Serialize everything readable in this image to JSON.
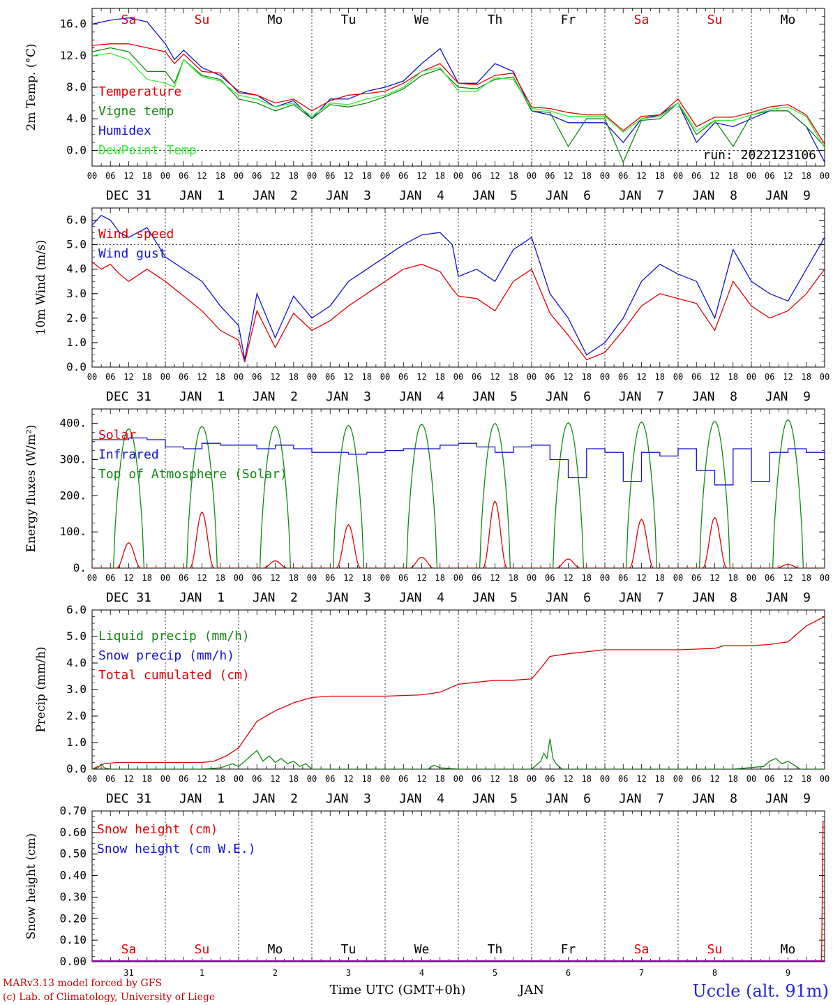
{
  "colors": {
    "red": "#e00000",
    "green": "#118811",
    "blue": "#1111cc",
    "light_green": "#33ee33",
    "purple": "#990099",
    "weekend": "#e00000",
    "weekday": "#000000"
  },
  "days": [
    "Sa",
    "Su",
    "Mo",
    "Tu",
    "We",
    "Th",
    "Fr",
    "Sa",
    "Su",
    "Mo"
  ],
  "weekend_flags": [
    true,
    true,
    false,
    false,
    false,
    false,
    false,
    true,
    true,
    false
  ],
  "hour_labels": [
    "00",
    "06",
    "12",
    "18"
  ],
  "date_labels": [
    "DEC 31",
    "JAN  1",
    "JAN  2",
    "JAN  3",
    "JAN  4",
    "JAN  5",
    "JAN  6",
    "JAN  7",
    "JAN  8",
    "JAN  9"
  ],
  "bottom_day_numbers": [
    "31",
    "1",
    "2",
    "3",
    "4",
    "5",
    "6",
    "7",
    "8",
    "9"
  ],
  "footer": {
    "model_line1": "MARv3.13 model forced by GFS",
    "model_line2": "(c) Lab. of Climatology, University of Liege",
    "time_label": "Time UTC (GMT+0h)",
    "month_label": "JAN",
    "station": "Uccle (alt. 91m)"
  },
  "chart_data": [
    {
      "id": "temp",
      "type": "line",
      "ylabel": "2m Temp. (°C)",
      "ylim": [
        -2,
        18
      ],
      "yticks": [
        0,
        4,
        8,
        12,
        16
      ],
      "ytick_labels": [
        "0.0",
        "4.0",
        "8.0",
        "12.0",
        "16.0"
      ],
      "run_label": "run: 2022123106",
      "legend": [
        {
          "label": "Temperature",
          "color": "red"
        },
        {
          "label": "Vigne temp",
          "color": "green"
        },
        {
          "label": "Humidex",
          "color": "blue"
        },
        {
          "label": "DewPoint Temp",
          "color": "light_green"
        }
      ],
      "series": [
        {
          "name": "Humidex",
          "color": "blue",
          "x": [
            0,
            6,
            12,
            18,
            24,
            27,
            30,
            36,
            42,
            48,
            54,
            60,
            66,
            72,
            78,
            84,
            90,
            96,
            102,
            108,
            114,
            120,
            126,
            132,
            138,
            144,
            150,
            156,
            162,
            168,
            174,
            180,
            186,
            192,
            198,
            204,
            210,
            216,
            222,
            228,
            234,
            240
          ],
          "y": [
            16.0,
            16.5,
            16.8,
            16.3,
            13.5,
            11.5,
            12.7,
            10.5,
            9.5,
            7.5,
            7.0,
            5.5,
            6.3,
            4.0,
            6.5,
            6.5,
            7.5,
            8.0,
            8.8,
            11.0,
            12.9,
            8.5,
            8.5,
            11.0,
            10.0,
            5.0,
            4.5,
            3.5,
            3.5,
            3.5,
            1.0,
            4.0,
            4.5,
            6.0,
            1.0,
            3.5,
            3.0,
            4.0,
            5.0,
            5.0,
            3.0,
            -1.5
          ]
        },
        {
          "name": "Temperature",
          "color": "red",
          "x": [
            0,
            6,
            12,
            18,
            24,
            27,
            30,
            36,
            42,
            48,
            54,
            60,
            66,
            72,
            78,
            84,
            90,
            96,
            102,
            108,
            114,
            120,
            126,
            132,
            138,
            144,
            150,
            156,
            162,
            168,
            174,
            180,
            186,
            192,
            198,
            204,
            210,
            216,
            222,
            228,
            234,
            240
          ],
          "y": [
            13.3,
            13.5,
            13.5,
            13.0,
            12.5,
            11.0,
            12.2,
            10.0,
            9.8,
            7.3,
            7.0,
            6.0,
            6.5,
            5.0,
            6.3,
            7.0,
            7.2,
            7.5,
            8.5,
            10.0,
            11.0,
            8.5,
            8.3,
            9.5,
            9.8,
            5.5,
            5.3,
            4.8,
            4.5,
            4.5,
            2.5,
            4.3,
            4.5,
            6.5,
            3.0,
            4.2,
            4.2,
            4.8,
            5.5,
            5.8,
            4.5,
            0.8
          ]
        },
        {
          "name": "Vigne temp",
          "color": "green",
          "x": [
            0,
            6,
            12,
            18,
            24,
            27,
            30,
            36,
            42,
            48,
            54,
            60,
            66,
            72,
            78,
            84,
            90,
            96,
            102,
            108,
            114,
            120,
            126,
            132,
            138,
            144,
            150,
            156,
            162,
            168,
            174,
            180,
            186,
            192,
            198,
            204,
            210,
            216,
            222,
            228,
            234,
            240
          ],
          "y": [
            12.5,
            13.0,
            12.5,
            10.0,
            10.0,
            8.5,
            11.5,
            9.5,
            9.0,
            6.5,
            6.0,
            5.0,
            5.8,
            4.0,
            5.8,
            5.5,
            6.0,
            6.8,
            7.8,
            9.5,
            10.3,
            8.0,
            7.8,
            9.0,
            9.3,
            5.0,
            4.8,
            0.5,
            4.0,
            4.0,
            -1.5,
            3.8,
            4.0,
            6.0,
            2.0,
            3.8,
            0.5,
            4.5,
            5.0,
            5.0,
            3.0,
            0.5
          ]
        },
        {
          "name": "DewPoint Temp",
          "color": "light_green",
          "x": [
            0,
            6,
            12,
            18,
            24,
            27,
            30,
            36,
            42,
            48,
            54,
            60,
            66,
            72,
            78,
            84,
            90,
            96,
            102,
            108,
            114,
            120,
            126,
            132,
            138,
            144,
            150,
            156,
            162,
            168,
            174,
            180,
            186,
            192,
            198,
            204,
            210,
            216,
            222,
            228,
            234,
            240
          ],
          "y": [
            12.0,
            12.3,
            11.5,
            9.0,
            8.5,
            8.0,
            11.5,
            9.3,
            8.8,
            7.0,
            6.5,
            5.5,
            6.0,
            4.3,
            6.0,
            5.8,
            6.5,
            7.0,
            8.0,
            10.0,
            10.5,
            7.5,
            7.5,
            9.2,
            9.0,
            5.3,
            5.0,
            4.3,
            4.3,
            4.3,
            2.3,
            4.0,
            4.3,
            6.0,
            2.5,
            3.8,
            3.8,
            4.5,
            5.2,
            5.5,
            4.3,
            0.3
          ]
        }
      ]
    },
    {
      "id": "wind",
      "type": "line",
      "ylabel": "10m Wind (m/s)",
      "ylim": [
        0,
        6.5
      ],
      "yticks": [
        0,
        1,
        2,
        3,
        4,
        5,
        6
      ],
      "ytick_labels": [
        "0.0",
        "1.0",
        "2.0",
        "3.0",
        "4.0",
        "5.0",
        "6.0"
      ],
      "ref_line": 5.0,
      "legend": [
        {
          "label": "Wind speed",
          "color": "red"
        },
        {
          "label": "Wind gust",
          "color": "blue"
        }
      ],
      "series": [
        {
          "name": "Wind gust",
          "color": "blue",
          "x": [
            0,
            3,
            6,
            9,
            12,
            18,
            24,
            30,
            36,
            42,
            48,
            50,
            54,
            60,
            66,
            72,
            78,
            84,
            90,
            96,
            102,
            108,
            114,
            118,
            120,
            126,
            132,
            138,
            144,
            150,
            156,
            162,
            168,
            174,
            180,
            186,
            192,
            198,
            204,
            210,
            216,
            222,
            228,
            234,
            240
          ],
          "y": [
            5.8,
            6.2,
            6.0,
            5.5,
            5.3,
            5.7,
            4.5,
            4.0,
            3.5,
            2.5,
            1.7,
            0.3,
            3.0,
            1.2,
            2.9,
            2.0,
            2.5,
            3.5,
            4.0,
            4.5,
            5.0,
            5.4,
            5.5,
            5.0,
            3.7,
            4.0,
            3.5,
            4.8,
            5.3,
            3.0,
            2.0,
            0.5,
            1.0,
            2.0,
            3.5,
            4.2,
            3.8,
            3.5,
            2.0,
            4.8,
            3.5,
            3.0,
            2.7,
            4.0,
            5.3
          ]
        },
        {
          "name": "Wind speed",
          "color": "red",
          "x": [
            0,
            3,
            6,
            9,
            12,
            18,
            24,
            30,
            36,
            42,
            48,
            50,
            54,
            60,
            66,
            72,
            78,
            84,
            90,
            96,
            102,
            108,
            114,
            118,
            120,
            126,
            132,
            138,
            144,
            150,
            156,
            162,
            168,
            174,
            180,
            186,
            192,
            198,
            204,
            210,
            216,
            222,
            228,
            234,
            240
          ],
          "y": [
            4.3,
            4.0,
            4.2,
            3.8,
            3.5,
            4.0,
            3.5,
            2.9,
            2.3,
            1.5,
            1.1,
            0.2,
            2.3,
            0.8,
            2.2,
            1.5,
            1.9,
            2.5,
            3.0,
            3.5,
            4.0,
            4.2,
            3.9,
            3.2,
            2.9,
            2.8,
            2.3,
            3.5,
            4.0,
            2.2,
            1.3,
            0.3,
            0.6,
            1.5,
            2.5,
            3.0,
            2.8,
            2.6,
            1.5,
            3.5,
            2.5,
            2.0,
            2.3,
            3.0,
            4.0
          ]
        }
      ]
    },
    {
      "id": "flux",
      "type": "line",
      "ylabel": "Energy fluxes (W/m²)",
      "ylim": [
        0,
        440
      ],
      "yticks": [
        0,
        100,
        200,
        300,
        400
      ],
      "ytick_labels": [
        "0.",
        "100.",
        "200.",
        "300.",
        "400."
      ],
      "legend": [
        {
          "label": "Solar",
          "color": "red"
        },
        {
          "label": "Infrared",
          "color": "blue"
        },
        {
          "label": "Top of Atmosphere (Solar)",
          "color": "green"
        }
      ],
      "toa_peaks": [
        385,
        392,
        392,
        395,
        398,
        400,
        402,
        404,
        406,
        410
      ],
      "solar_peaks": [
        70,
        155,
        20,
        120,
        30,
        185,
        25,
        135,
        140,
        10
      ],
      "infrared": {
        "x": [
          0,
          6,
          12,
          18,
          24,
          30,
          36,
          42,
          48,
          54,
          60,
          66,
          72,
          78,
          84,
          90,
          96,
          102,
          108,
          114,
          120,
          126,
          132,
          138,
          144,
          150,
          156,
          162,
          168,
          174,
          180,
          186,
          192,
          198,
          204,
          210,
          216,
          222,
          228,
          234,
          240
        ],
        "y": [
          355,
          355,
          360,
          355,
          335,
          330,
          345,
          340,
          340,
          330,
          340,
          330,
          320,
          320,
          315,
          320,
          325,
          330,
          330,
          340,
          345,
          335,
          320,
          335,
          340,
          300,
          250,
          330,
          320,
          240,
          320,
          310,
          330,
          270,
          230,
          330,
          240,
          320,
          330,
          320,
          300
        ]
      }
    },
    {
      "id": "precip",
      "type": "line",
      "ylabel": "Precip (mm/h)",
      "ylim": [
        0,
        6
      ],
      "yticks": [
        0,
        1,
        2,
        3,
        4,
        5,
        6
      ],
      "ytick_labels": [
        "0.0",
        "1.0",
        "2.0",
        "3.0",
        "4.0",
        "5.0",
        "6.0"
      ],
      "legend": [
        {
          "label": "Liquid precip (mm/h)",
          "color": "green"
        },
        {
          "label": "Snow precip (mm/h)",
          "color": "blue"
        },
        {
          "label": "Total cumulated (cm)",
          "color": "red"
        }
      ],
      "series": [
        {
          "name": "Total cumulated (cm)",
          "color": "red",
          "x": [
            0,
            2,
            4,
            8,
            12,
            24,
            36,
            40,
            44,
            48,
            51,
            54,
            60,
            66,
            72,
            78,
            84,
            96,
            108,
            114,
            120,
            132,
            138,
            144,
            147,
            150,
            156,
            168,
            180,
            192,
            204,
            207,
            216,
            222,
            228,
            234,
            240
          ],
          "y": [
            0.0,
            0.1,
            0.2,
            0.25,
            0.25,
            0.25,
            0.25,
            0.3,
            0.5,
            0.8,
            1.3,
            1.8,
            2.2,
            2.5,
            2.7,
            2.75,
            2.75,
            2.75,
            2.8,
            2.9,
            3.2,
            3.35,
            3.35,
            3.4,
            3.8,
            4.25,
            4.35,
            4.5,
            4.5,
            4.5,
            4.55,
            4.65,
            4.65,
            4.7,
            4.8,
            5.4,
            5.75
          ]
        },
        {
          "name": "Liquid precip (mm/h)",
          "color": "green",
          "x": [
            0,
            2,
            3,
            4,
            6,
            24,
            36,
            42,
            46,
            48,
            50,
            52,
            54,
            56,
            58,
            60,
            62,
            64,
            66,
            68,
            70,
            72,
            74,
            96,
            110,
            112,
            114,
            120,
            144,
            147,
            148,
            149,
            150,
            151,
            152,
            154,
            168,
            210,
            220,
            222,
            224,
            226,
            228,
            232,
            240
          ],
          "y": [
            0,
            0.05,
            0.2,
            0.05,
            0,
            0,
            0,
            0.05,
            0.2,
            0.1,
            0.3,
            0.5,
            0.7,
            0.3,
            0.5,
            0.25,
            0.4,
            0.2,
            0.3,
            0.1,
            0.2,
            0,
            0,
            0,
            0,
            0.15,
            0.05,
            0,
            0,
            0.3,
            0.6,
            0.4,
            1.15,
            0.4,
            0.2,
            0,
            0,
            0,
            0.1,
            0.3,
            0.4,
            0.2,
            0.3,
            0,
            0
          ]
        }
      ]
    },
    {
      "id": "snow",
      "type": "line",
      "ylabel": "Snow height (cm)",
      "ylim": [
        0,
        0.7
      ],
      "yticks": [
        0,
        0.1,
        0.2,
        0.3,
        0.4,
        0.5,
        0.6,
        0.7
      ],
      "ytick_labels": [
        "0.00",
        "0.10",
        "0.20",
        "0.30",
        "0.40",
        "0.50",
        "0.60",
        "0.70"
      ],
      "legend": [
        {
          "label": "Snow height (cm)",
          "color": "red"
        },
        {
          "label": "Snow height (cm W.E.)",
          "color": "blue"
        }
      ],
      "series": [
        {
          "name": "Snow height (cm)",
          "color": "red",
          "x": [
            0,
            239,
            239.5,
            240
          ],
          "y": [
            0,
            0,
            0.65,
            0.65
          ]
        },
        {
          "name": "Snow height (cm W.E.)",
          "color": "blue",
          "x": [
            0,
            240
          ],
          "y": [
            0,
            0
          ]
        }
      ]
    }
  ]
}
